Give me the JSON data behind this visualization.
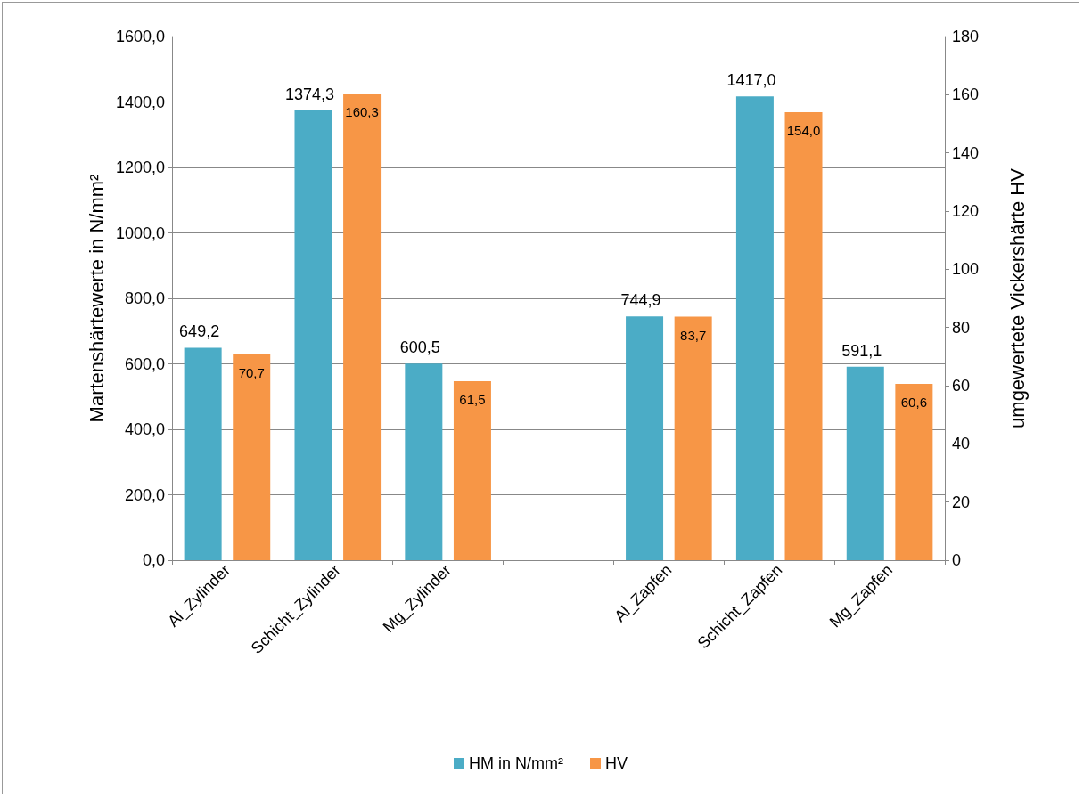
{
  "chart_data": {
    "type": "bar",
    "categories": [
      "Al_Zylinder",
      "Schicht_Zylinder",
      "Mg_Zylinder",
      null,
      "Al_Zapfen",
      "Schicht_Zapfen",
      "Mg_Zapfen"
    ],
    "series": [
      {
        "name": "HM in N/mm²",
        "color": "#4bacc6",
        "values": [
          649.2,
          1374.3,
          600.5,
          null,
          744.9,
          1417.0,
          591.1
        ],
        "value_labels": [
          "649,2",
          "1374,3",
          "600,5",
          null,
          "744,9",
          "1417,0",
          "591,1"
        ]
      },
      {
        "name": "HV",
        "color": "#f79646",
        "axis": "y2",
        "values": [
          70.7,
          160.3,
          61.5,
          null,
          83.7,
          154.0,
          60.6
        ],
        "value_labels": [
          "70,7",
          "160,3",
          "61,5",
          null,
          "83,7",
          "154,0",
          "60,6"
        ]
      }
    ],
    "ylabel": "Martenshärtewerte in N/mm²",
    "y2label": "umgewertete Vickershärte HV",
    "ylim": [
      0,
      1600
    ],
    "yticks": [
      {
        "value": 0,
        "label": "0,0"
      },
      {
        "value": 200,
        "label": "200,0"
      },
      {
        "value": 400,
        "label": "400,0"
      },
      {
        "value": 600,
        "label": "600,0"
      },
      {
        "value": 800,
        "label": "800,0"
      },
      {
        "value": 1000,
        "label": "1000,0"
      },
      {
        "value": 1200,
        "label": "1200,0"
      },
      {
        "value": 1400,
        "label": "1400,0"
      },
      {
        "value": 1600,
        "label": "1600,0"
      }
    ],
    "y2lim": [
      0,
      180
    ],
    "y2ticks": [
      0,
      20,
      40,
      60,
      80,
      100,
      120,
      140,
      160,
      180
    ],
    "grid": "y",
    "legend": "bottom"
  }
}
